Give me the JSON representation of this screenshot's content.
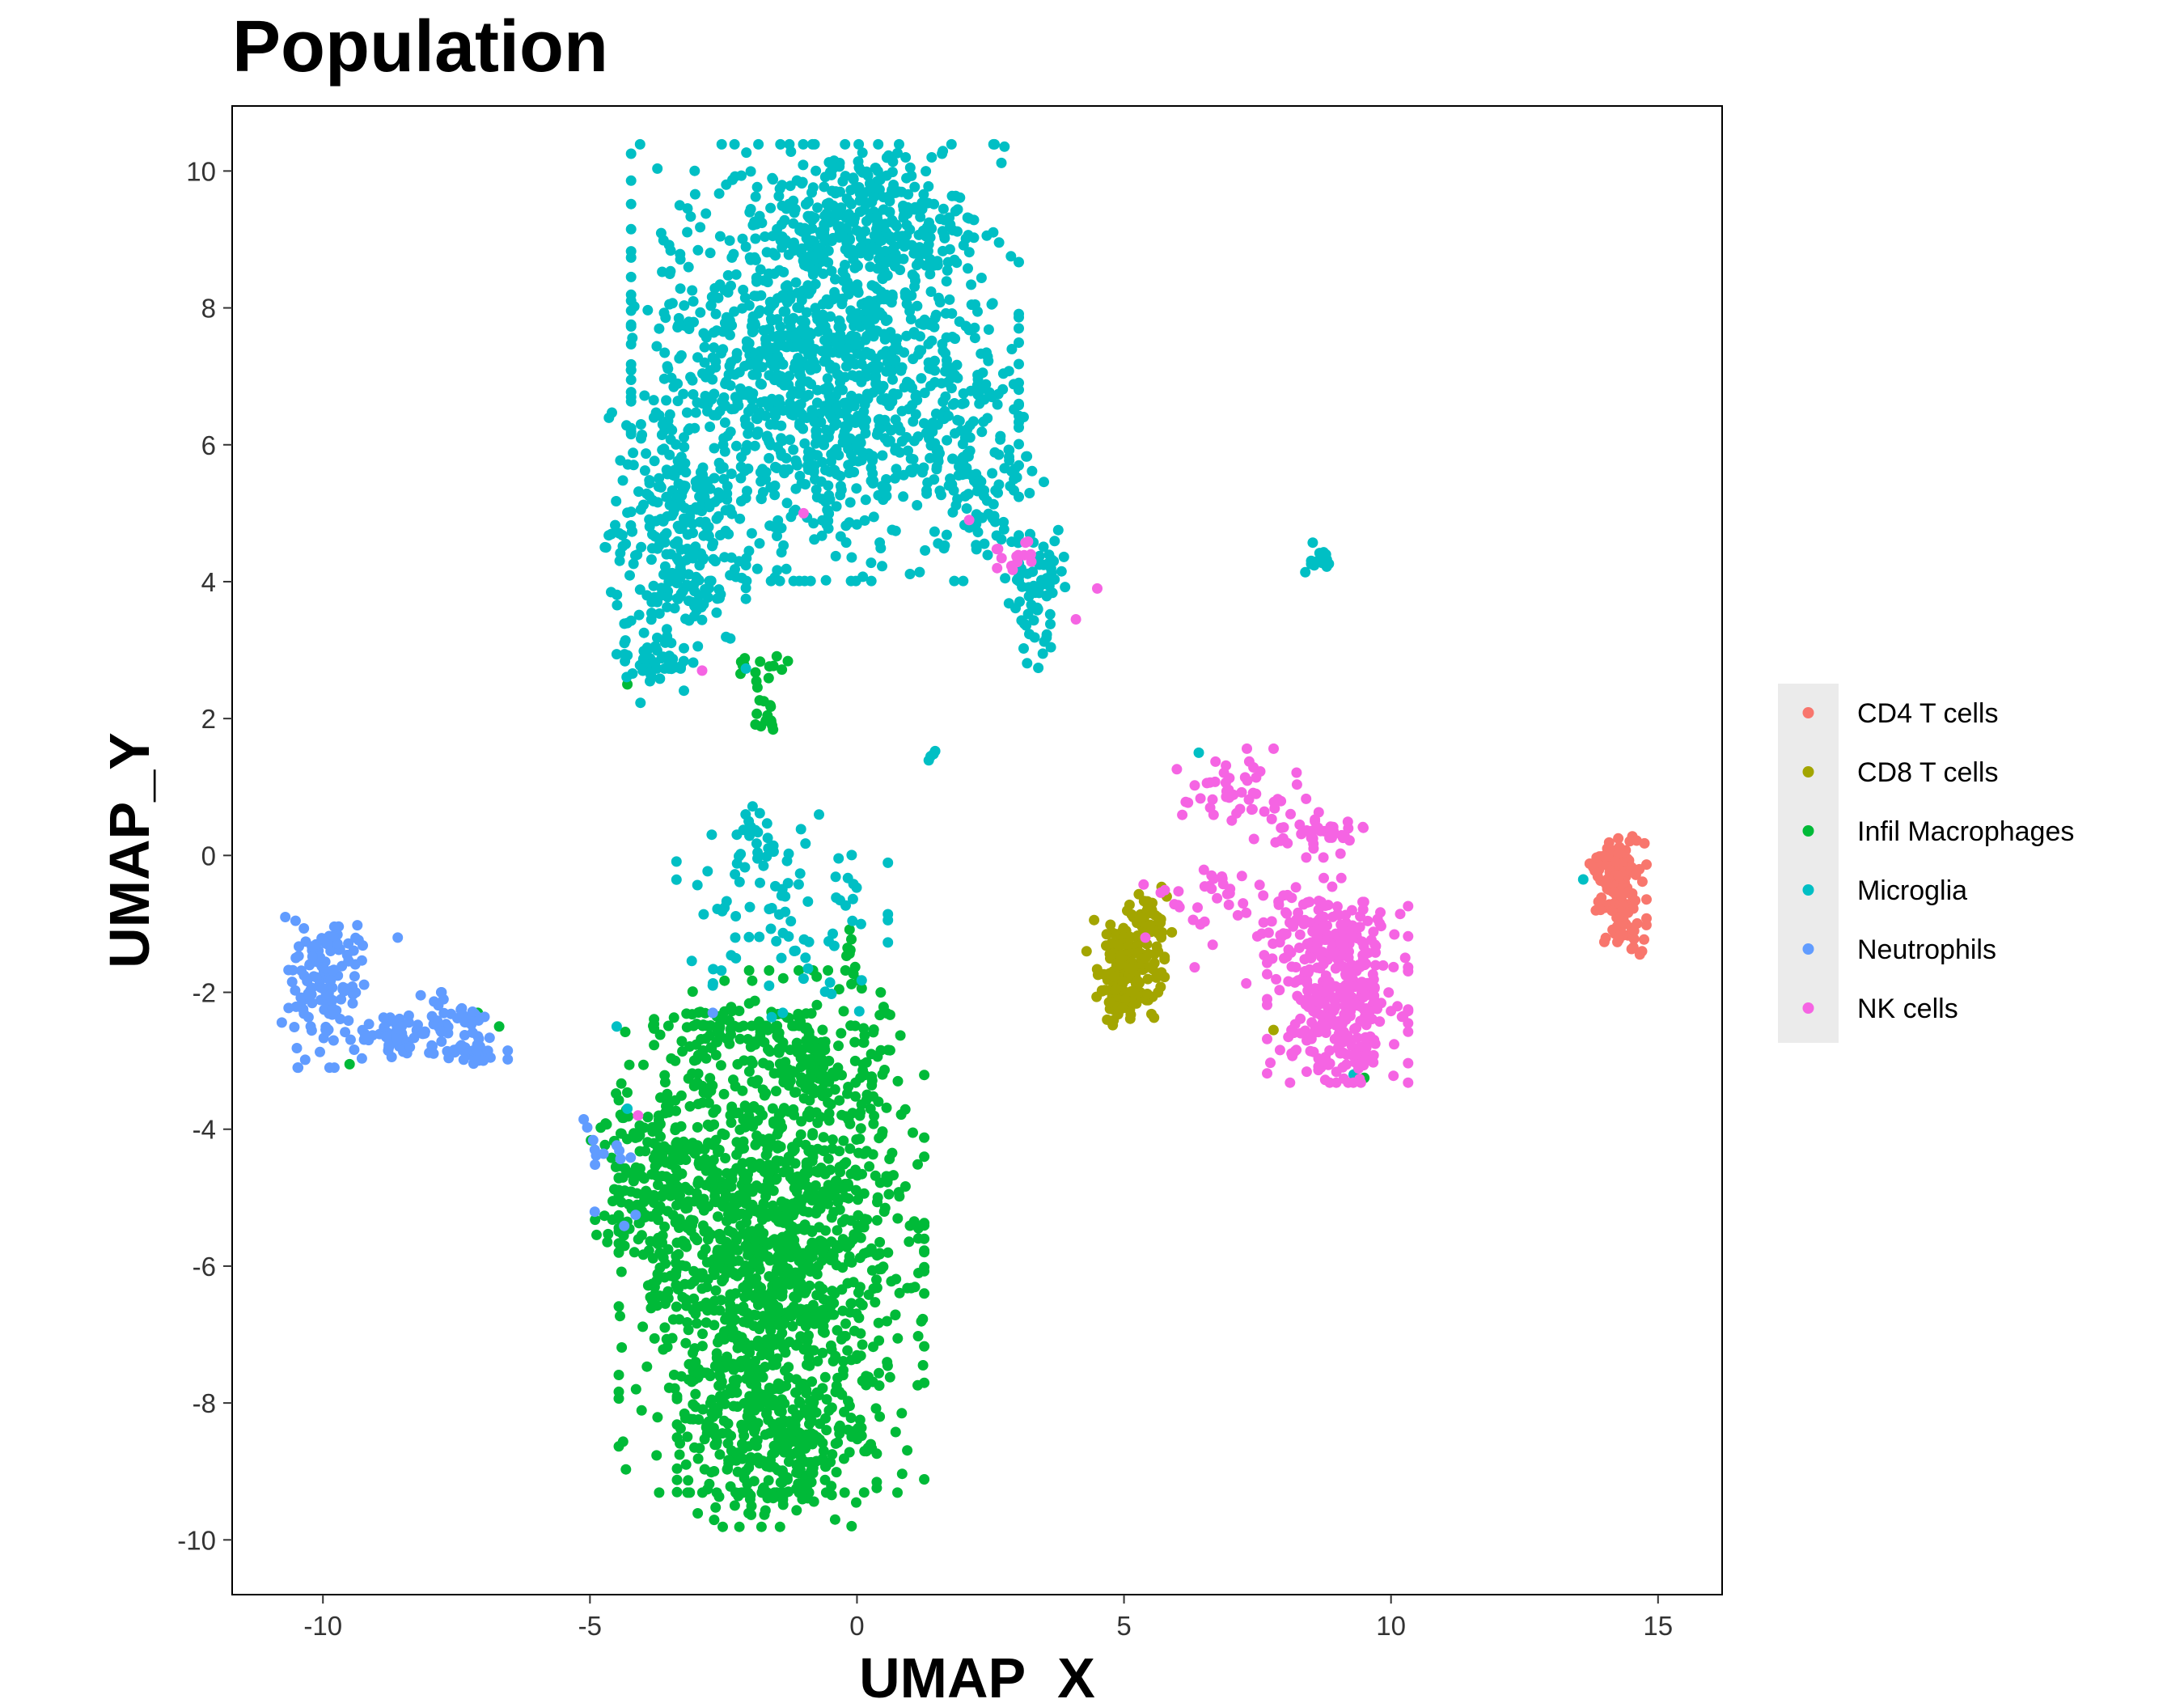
{
  "chart_data": {
    "type": "scatter",
    "title": "Population",
    "xlabel": "UMAP_X",
    "ylabel": "UMAP_Y",
    "xlim": [
      -11.7,
      16.2
    ],
    "ylim": [
      -10.8,
      10.95
    ],
    "x_ticks": [
      -10,
      -5,
      0,
      5,
      10,
      15
    ],
    "x_tick_labels": [
      "-10",
      "-5",
      "0",
      "5",
      "10",
      "15"
    ],
    "y_ticks": [
      10,
      8,
      6,
      4,
      2,
      0,
      -2,
      -4,
      -6,
      -8,
      -10
    ],
    "y_tick_labels": [
      "10",
      "8",
      "6",
      "4",
      "2",
      "0",
      "-2",
      "-4",
      "-6",
      "-8",
      "-10"
    ],
    "grid": false,
    "legend_position": "right",
    "series": [
      {
        "name": "CD4 T cells",
        "color": "#F8766D",
        "clusters": [
          {
            "center": [
              14.3,
              -0.6
            ],
            "spread": [
              0.22,
              0.4
            ],
            "count": 130
          },
          {
            "center": [
              14.05,
              -0.1
            ],
            "spread": [
              0.15,
              0.15
            ],
            "count": 20
          }
        ],
        "points": [
          [
            14.7,
            -1.4
          ]
        ]
      },
      {
        "name": "CD8 T cells",
        "color": "#A3A500",
        "clusters": [
          {
            "center": [
              5.1,
              -1.6
            ],
            "spread": [
              0.3,
              0.4
            ],
            "count": 170
          },
          {
            "center": [
              5.0,
              -2.1
            ],
            "spread": [
              0.15,
              0.15
            ],
            "count": 20
          },
          {
            "center": [
              5.5,
              -0.9
            ],
            "spread": [
              0.18,
              0.2
            ],
            "count": 25
          }
        ],
        "points": [
          [
            7.8,
            -2.55
          ],
          [
            4.3,
            -1.4
          ],
          [
            5.8,
            -0.6
          ]
        ]
      },
      {
        "name": "Infil Macrophages",
        "color": "#00BA38",
        "clusters": [
          {
            "center": [
              -1.6,
              -5.9
            ],
            "spread": [
              1.3,
              1.55
            ],
            "count": 1300
          },
          {
            "center": [
              -1.5,
              -8.6
            ],
            "spread": [
              0.85,
              0.55
            ],
            "count": 260
          },
          {
            "center": [
              -3.9,
              -4.6
            ],
            "spread": [
              0.55,
              0.7
            ],
            "count": 160
          },
          {
            "center": [
              -0.7,
              -3.0
            ],
            "spread": [
              0.6,
              0.6
            ],
            "count": 160
          },
          {
            "center": [
              -2.7,
              -2.6
            ],
            "spread": [
              0.5,
              0.35
            ],
            "count": 60
          },
          {
            "center": [
              -1.8,
              2.1
            ],
            "spread": [
              0.15,
              0.2
            ],
            "count": 14
          },
          {
            "center": [
              -1.9,
              2.75
            ],
            "spread": [
              0.3,
              0.1
            ],
            "count": 14
          },
          {
            "center": [
              -0.15,
              -1.4
            ],
            "spread": [
              0.1,
              0.15
            ],
            "count": 8
          }
        ],
        "points": [
          [
            -4.3,
            2.5
          ],
          [
            -6.7,
            -2.5
          ],
          [
            -9.5,
            -3.05
          ],
          [
            -7.1,
            -2.3
          ],
          [
            9.5,
            -3.25
          ],
          [
            -0.1,
            -9.8
          ],
          [
            -3.2,
            -8.9
          ]
        ]
      },
      {
        "name": "Microglia",
        "color": "#00BFC4",
        "clusters": [
          {
            "center": [
              -0.6,
              7.2
            ],
            "spread": [
              1.65,
              1.45
            ],
            "count": 1300
          },
          {
            "center": [
              0.1,
              9.3
            ],
            "spread": [
              0.95,
              0.45
            ],
            "count": 200
          },
          {
            "center": [
              -3.4,
              4.6
            ],
            "spread": [
              0.6,
              0.85
            ],
            "count": 240
          },
          {
            "center": [
              -3.9,
              3.0
            ],
            "spread": [
              0.3,
              0.35
            ],
            "count": 50
          },
          {
            "center": [
              2.4,
              5.6
            ],
            "spread": [
              0.5,
              0.55
            ],
            "count": 90
          },
          {
            "center": [
              3.4,
              4.2
            ],
            "spread": [
              0.35,
              0.3
            ],
            "count": 45
          },
          {
            "center": [
              3.3,
              3.4
            ],
            "spread": [
              0.15,
              0.3
            ],
            "count": 25
          },
          {
            "center": [
              8.6,
              4.35
            ],
            "spread": [
              0.15,
              0.1
            ],
            "count": 14
          },
          {
            "center": [
              -1.4,
              -0.8
            ],
            "spread": [
              0.9,
              0.8
            ],
            "count": 85
          },
          {
            "center": [
              -1.9,
              0.2
            ],
            "spread": [
              0.25,
              0.25
            ],
            "count": 20
          },
          {
            "center": [
              1.4,
              1.5
            ],
            "spread": [
              0.05,
              0.05
            ],
            "count": 4
          }
        ],
        "points": [
          [
            -4.7,
            4.5
          ],
          [
            6.4,
            1.5
          ],
          [
            13.6,
            -0.35
          ],
          [
            -1.0,
            -1.8
          ],
          [
            -2.7,
            -1.9
          ],
          [
            -4.3,
            -3.7
          ],
          [
            -4.5,
            -2.5
          ],
          [
            9.3,
            -3.2
          ]
        ]
      },
      {
        "name": "Neutrophils",
        "color": "#619CFF",
        "clusters": [
          {
            "center": [
              -10.0,
              -2.0
            ],
            "spread": [
              0.35,
              0.5
            ],
            "count": 110
          },
          {
            "center": [
              -9.6,
              -1.35
            ],
            "spread": [
              0.3,
              0.15
            ],
            "count": 25
          },
          {
            "center": [
              -8.6,
              -2.7
            ],
            "spread": [
              0.4,
              0.15
            ],
            "count": 50
          },
          {
            "center": [
              -7.6,
              -2.55
            ],
            "spread": [
              0.45,
              0.25
            ],
            "count": 50
          },
          {
            "center": [
              -7.2,
              -2.9
            ],
            "spread": [
              0.3,
              0.12
            ],
            "count": 20
          },
          {
            "center": [
              -4.6,
              -4.5
            ],
            "spread": [
              0.3,
              0.5
            ],
            "count": 14
          }
        ],
        "points": [
          [
            -8.6,
            -1.2
          ],
          [
            -2.7,
            -2.3
          ]
        ]
      },
      {
        "name": "NK cells",
        "color": "#F564E3",
        "clusters": [
          {
            "center": [
              9.0,
              -2.0
            ],
            "spread": [
              0.6,
              0.6
            ],
            "count": 300
          },
          {
            "center": [
              8.5,
              -1.1
            ],
            "spread": [
              0.55,
              0.35
            ],
            "count": 80
          },
          {
            "center": [
              9.3,
              -2.9
            ],
            "spread": [
              0.3,
              0.2
            ],
            "count": 40
          },
          {
            "center": [
              8.6,
              0.3
            ],
            "spread": [
              0.45,
              0.15
            ],
            "count": 40
          },
          {
            "center": [
              7.2,
              0.9
            ],
            "spread": [
              0.55,
              0.3
            ],
            "count": 50
          },
          {
            "center": [
              6.8,
              -0.5
            ],
            "spread": [
              0.25,
              0.35
            ],
            "count": 16
          },
          {
            "center": [
              6.0,
              -0.9
            ],
            "spread": [
              0.3,
              0.35
            ],
            "count": 14
          },
          {
            "center": [
              2.9,
              4.3
            ],
            "spread": [
              0.2,
              0.15
            ],
            "count": 14
          }
        ],
        "points": [
          [
            2.1,
            4.9
          ],
          [
            4.5,
            3.9
          ],
          [
            4.1,
            3.45
          ],
          [
            -1.0,
            5.0
          ],
          [
            -2.9,
            2.7
          ],
          [
            -4.1,
            -3.8
          ],
          [
            5.4,
            -1.2
          ]
        ]
      }
    ]
  }
}
